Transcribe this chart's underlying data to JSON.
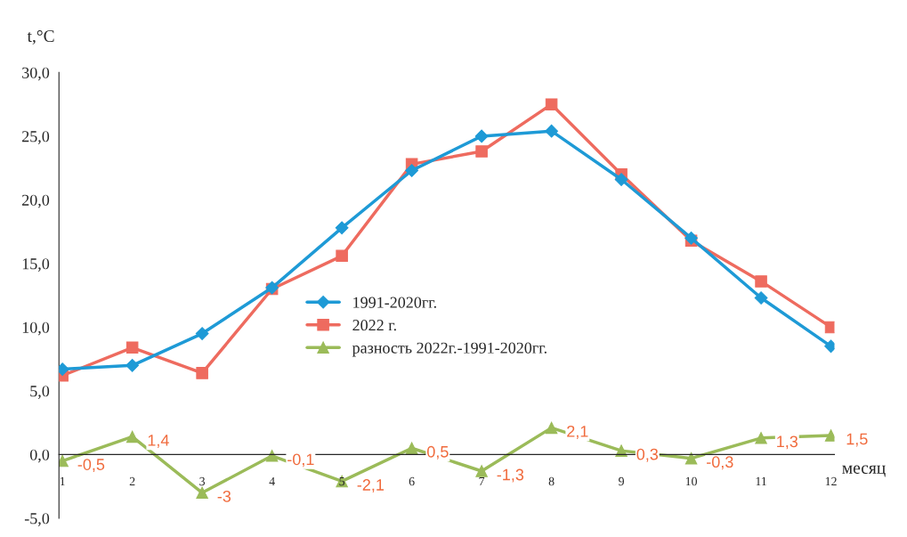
{
  "chart_data": {
    "type": "line",
    "ylabel": "t,°C",
    "xlabel": "месяц",
    "categories": [
      "1",
      "2",
      "3",
      "4",
      "5",
      "6",
      "7",
      "8",
      "9",
      "10",
      "11",
      "12"
    ],
    "series": [
      {
        "name": "1991-2020гг.",
        "color": "#1e9ad6",
        "marker": "diamond",
        "values": [
          6.7,
          7.0,
          9.5,
          13.1,
          17.8,
          22.3,
          25.0,
          25.4,
          21.6,
          17.0,
          12.3,
          8.5
        ]
      },
      {
        "name": "2022 г.",
        "color": "#ee6b5f",
        "marker": "square",
        "values": [
          6.2,
          8.4,
          6.4,
          13.0,
          15.6,
          22.8,
          23.8,
          27.5,
          22.0,
          16.8,
          13.6,
          10.0
        ]
      },
      {
        "name": "разность 2022г.-1991-2020гг.",
        "color": "#9bbb59",
        "marker": "triangle",
        "values": [
          -0.5,
          1.4,
          -3,
          -0.1,
          -2.1,
          0.5,
          -1.3,
          2.1,
          0.3,
          -0.3,
          1.3,
          1.5
        ],
        "value_labels": [
          "-0,5",
          "1,4",
          "-3",
          "-0,1",
          "-2,1",
          "0,5",
          "-1,3",
          "2,1",
          "0,3",
          "-0,3",
          "1,3",
          "1,5"
        ]
      }
    ],
    "ylim": [
      -5,
      30
    ],
    "yticks": [
      {
        "value": -5,
        "label": "-5,0"
      },
      {
        "value": 0,
        "label": "0,0"
      },
      {
        "value": 5,
        "label": "5,0"
      },
      {
        "value": 10,
        "label": "10,0"
      },
      {
        "value": 15,
        "label": "15,0"
      },
      {
        "value": 20,
        "label": "20,0"
      },
      {
        "value": 25,
        "label": "25,0"
      },
      {
        "value": 30,
        "label": "30,0"
      }
    ],
    "legend": "center",
    "grid": false
  }
}
